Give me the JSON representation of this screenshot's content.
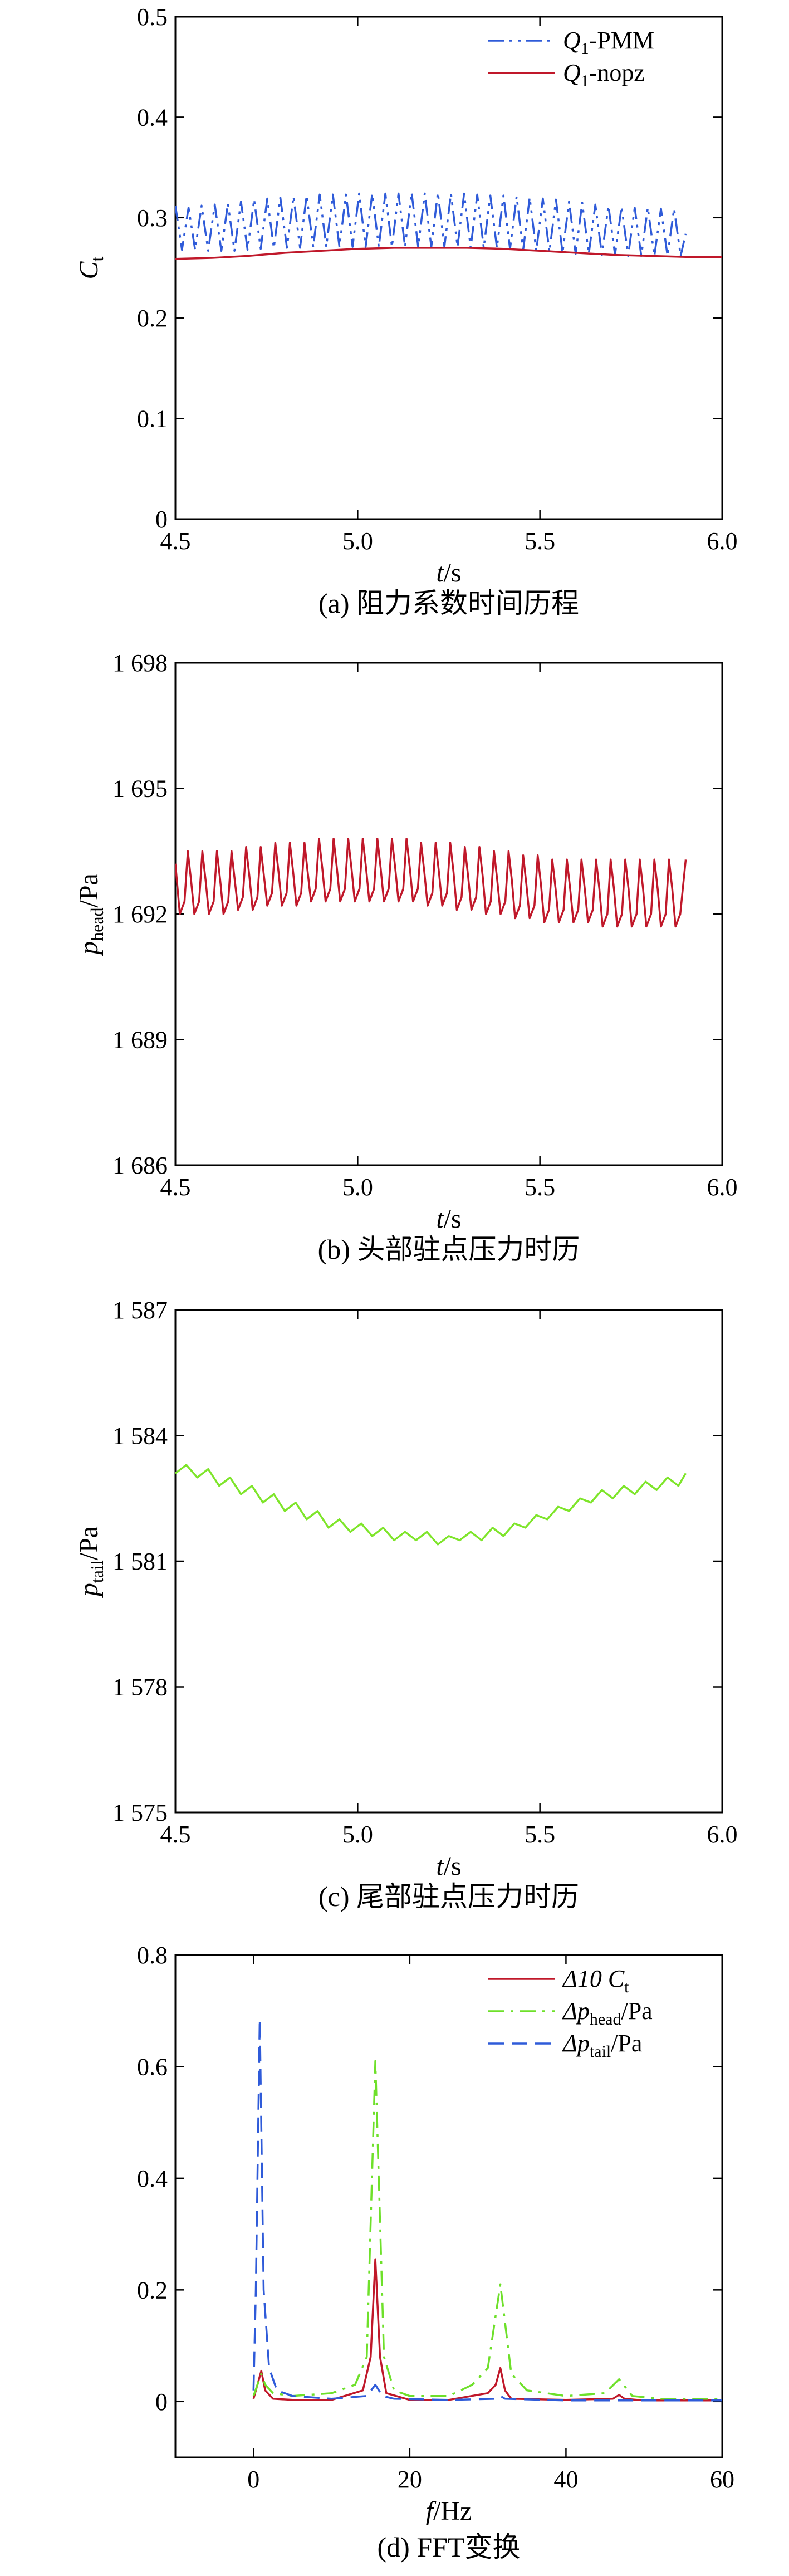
{
  "charts": [
    {
      "type": "line",
      "caption": "(a) 阻力系数时间历程",
      "xlabel": {
        "main": "t",
        "sub": "",
        "unit": "/s"
      },
      "ylabel": {
        "main": "C",
        "sub": "t",
        "unit": ""
      },
      "xlim": [
        4.5,
        6.0
      ],
      "ylim": [
        0,
        0.5
      ],
      "xticks": [
        4.5,
        5.0,
        5.5,
        6.0
      ],
      "xtick_labels": [
        "4.5",
        "5.0",
        "5.5",
        "6.0"
      ],
      "yticks": [
        0,
        0.1,
        0.2,
        0.3,
        0.4,
        0.5
      ],
      "ytick_labels": [
        "0",
        "0.1",
        "0.2",
        "0.3",
        "0.4",
        "0.5"
      ],
      "legend": {
        "position": "top-right"
      },
      "series": [
        {
          "name": "Q1-PMM",
          "label": {
            "main": "Q",
            "sub": "1",
            "rest": "-PMM"
          },
          "color": "#2f5bd9",
          "dash": "dashdotdot",
          "x": [
            4.5,
            4.518,
            4.536,
            4.554,
            4.572,
            4.59,
            4.608,
            4.626,
            4.644,
            4.662,
            4.68,
            4.698,
            4.716,
            4.734,
            4.752,
            4.77,
            4.788,
            4.806,
            4.824,
            4.842,
            4.86,
            4.878,
            4.896,
            4.914,
            4.932,
            4.95,
            4.968,
            4.986,
            5.004,
            5.022,
            5.04,
            5.058,
            5.076,
            5.094,
            5.112,
            5.13,
            5.148,
            5.166,
            5.184,
            5.202,
            5.22,
            5.238,
            5.256,
            5.274,
            5.292,
            5.31,
            5.328,
            5.346,
            5.364,
            5.382,
            5.4,
            5.418,
            5.436,
            5.454,
            5.472,
            5.49,
            5.508,
            5.526,
            5.544,
            5.562,
            5.58,
            5.598,
            5.616,
            5.634,
            5.652,
            5.67,
            5.688,
            5.706,
            5.724,
            5.742,
            5.76,
            5.778,
            5.796,
            5.814,
            5.832,
            5.85,
            5.868,
            5.886,
            5.9
          ],
          "y": [
            0.312,
            0.268,
            0.31,
            0.268,
            0.312,
            0.267,
            0.313,
            0.267,
            0.314,
            0.267,
            0.316,
            0.268,
            0.318,
            0.269,
            0.319,
            0.27,
            0.32,
            0.27,
            0.321,
            0.27,
            0.322,
            0.271,
            0.323,
            0.271,
            0.323,
            0.271,
            0.323,
            0.271,
            0.324,
            0.271,
            0.324,
            0.271,
            0.324,
            0.271,
            0.324,
            0.271,
            0.325,
            0.271,
            0.324,
            0.271,
            0.325,
            0.271,
            0.324,
            0.271,
            0.324,
            0.27,
            0.323,
            0.27,
            0.322,
            0.27,
            0.322,
            0.269,
            0.321,
            0.268,
            0.32,
            0.267,
            0.319,
            0.266,
            0.318,
            0.265,
            0.316,
            0.264,
            0.315,
            0.264,
            0.313,
            0.263,
            0.312,
            0.263,
            0.311,
            0.262,
            0.31,
            0.262,
            0.31,
            0.262,
            0.309,
            0.262,
            0.309,
            0.262,
            0.284
          ]
        },
        {
          "name": "Q1-nopz",
          "label": {
            "main": "Q",
            "sub": "1",
            "rest": "-nopz"
          },
          "color": "#c0182a",
          "dash": "solid",
          "x": [
            4.5,
            4.6,
            4.7,
            4.8,
            4.9,
            5.0,
            5.1,
            5.2,
            5.3,
            5.4,
            5.5,
            5.6,
            5.7,
            5.8,
            5.9,
            6.0
          ],
          "y": [
            0.259,
            0.26,
            0.262,
            0.265,
            0.267,
            0.269,
            0.27,
            0.27,
            0.27,
            0.269,
            0.267,
            0.265,
            0.263,
            0.262,
            0.261,
            0.261
          ]
        }
      ]
    },
    {
      "type": "line",
      "caption": "(b) 头部驻点压力时历",
      "xlabel": {
        "main": "t",
        "sub": "",
        "unit": "/s"
      },
      "ylabel": {
        "main": "p",
        "sub": "head",
        "unit": "/Pa"
      },
      "xlim": [
        4.5,
        6.0
      ],
      "ylim": [
        1686,
        1698
      ],
      "xticks": [
        4.5,
        5.0,
        5.5,
        6.0
      ],
      "xtick_labels": [
        "4.5",
        "5.0",
        "5.5",
        "6.0"
      ],
      "yticks": [
        1686,
        1689,
        1692,
        1695,
        1698
      ],
      "ytick_labels": [
        "1 686",
        "1 689",
        "1 692",
        "1 695",
        "1 698"
      ],
      "series": [
        {
          "name": "p_head",
          "color": "#c0182a",
          "dash": "solid",
          "x": [
            4.5,
            4.512,
            4.525,
            4.534,
            4.543,
            4.552,
            4.565,
            4.574,
            4.583,
            4.592,
            4.605,
            4.614,
            4.623,
            4.632,
            4.645,
            4.654,
            4.663,
            4.672,
            4.685,
            4.694,
            4.703,
            4.712,
            4.725,
            4.734,
            4.743,
            4.752,
            4.765,
            4.774,
            4.783,
            4.792,
            4.805,
            4.814,
            4.823,
            4.832,
            4.845,
            4.854,
            4.863,
            4.872,
            4.885,
            4.894,
            4.903,
            4.912,
            4.925,
            4.934,
            4.943,
            4.952,
            4.965,
            4.974,
            4.983,
            4.992,
            5.005,
            5.014,
            5.023,
            5.032,
            5.045,
            5.054,
            5.063,
            5.072,
            5.085,
            5.094,
            5.103,
            5.112,
            5.125,
            5.134,
            5.143,
            5.152,
            5.165,
            5.174,
            5.183,
            5.192,
            5.205,
            5.214,
            5.223,
            5.232,
            5.245,
            5.254,
            5.263,
            5.272,
            5.285,
            5.294,
            5.303,
            5.312,
            5.325,
            5.334,
            5.343,
            5.352,
            5.365,
            5.374,
            5.383,
            5.392,
            5.405,
            5.414,
            5.423,
            5.432,
            5.445,
            5.454,
            5.463,
            5.472,
            5.485,
            5.494,
            5.503,
            5.512,
            5.525,
            5.534,
            5.543,
            5.552,
            5.565,
            5.574,
            5.583,
            5.592,
            5.605,
            5.614,
            5.623,
            5.632,
            5.645,
            5.654,
            5.663,
            5.672,
            5.685,
            5.694,
            5.703,
            5.712,
            5.725,
            5.734,
            5.743,
            5.752,
            5.765,
            5.774,
            5.783,
            5.792,
            5.805,
            5.814,
            5.823,
            5.832,
            5.845,
            5.854,
            5.863,
            5.872,
            5.885,
            5.9
          ],
          "y": [
            1693.2,
            1692.0,
            1692.3,
            1693.5,
            1692.8,
            1692.0,
            1692.3,
            1693.5,
            1692.8,
            1692.0,
            1692.3,
            1693.5,
            1692.8,
            1692.0,
            1692.3,
            1693.5,
            1692.8,
            1692.1,
            1692.4,
            1693.6,
            1692.9,
            1692.1,
            1692.4,
            1693.6,
            1692.9,
            1692.2,
            1692.5,
            1693.7,
            1693.0,
            1692.2,
            1692.5,
            1693.7,
            1693.0,
            1692.2,
            1692.5,
            1693.7,
            1693.0,
            1692.3,
            1692.6,
            1693.8,
            1693.1,
            1692.3,
            1692.6,
            1693.8,
            1693.1,
            1692.3,
            1692.6,
            1693.8,
            1693.1,
            1692.3,
            1692.6,
            1693.8,
            1693.1,
            1692.3,
            1692.6,
            1693.8,
            1693.1,
            1692.3,
            1692.6,
            1693.8,
            1693.1,
            1692.3,
            1692.6,
            1693.8,
            1693.1,
            1692.3,
            1692.6,
            1693.7,
            1693.0,
            1692.2,
            1692.5,
            1693.7,
            1693.0,
            1692.2,
            1692.5,
            1693.7,
            1693.0,
            1692.1,
            1692.4,
            1693.6,
            1692.9,
            1692.1,
            1692.4,
            1693.6,
            1692.9,
            1692.0,
            1692.3,
            1693.5,
            1692.8,
            1692.0,
            1692.3,
            1693.5,
            1692.8,
            1691.9,
            1692.2,
            1693.4,
            1692.7,
            1691.9,
            1692.2,
            1693.4,
            1692.7,
            1691.8,
            1692.1,
            1693.3,
            1692.6,
            1691.8,
            1692.1,
            1693.3,
            1692.6,
            1691.8,
            1692.1,
            1693.3,
            1692.6,
            1691.8,
            1692.1,
            1693.3,
            1692.6,
            1691.7,
            1692.0,
            1693.3,
            1692.6,
            1691.7,
            1692.0,
            1693.3,
            1692.6,
            1691.7,
            1692.0,
            1693.3,
            1692.6,
            1691.7,
            1692.0,
            1693.3,
            1692.6,
            1691.7,
            1692.0,
            1693.3,
            1692.6,
            1691.7,
            1692.0,
            1693.3
          ]
        }
      ]
    },
    {
      "type": "line",
      "caption": "(c) 尾部驻点压力时历",
      "xlabel": {
        "main": "t",
        "sub": "",
        "unit": "/s"
      },
      "ylabel": {
        "main": "p",
        "sub": "tail",
        "unit": "/Pa"
      },
      "xlim": [
        4.5,
        6.0
      ],
      "ylim": [
        1575,
        1587
      ],
      "xticks": [
        4.5,
        5.0,
        5.5,
        6.0
      ],
      "xtick_labels": [
        "4.5",
        "5.0",
        "5.5",
        "6.0"
      ],
      "yticks": [
        1575,
        1578,
        1581,
        1584,
        1587
      ],
      "ytick_labels": [
        "1 575",
        "1 578",
        "1 581",
        "1 584",
        "1 587"
      ],
      "series": [
        {
          "name": "p_tail",
          "color": "#7ee52a",
          "dash": "solid",
          "x": [
            4.5,
            4.53,
            4.56,
            4.59,
            4.62,
            4.65,
            4.68,
            4.71,
            4.74,
            4.77,
            4.8,
            4.83,
            4.86,
            4.89,
            4.92,
            4.95,
            4.98,
            5.01,
            5.04,
            5.07,
            5.1,
            5.13,
            5.16,
            5.19,
            5.22,
            5.25,
            5.28,
            5.31,
            5.34,
            5.37,
            5.4,
            5.43,
            5.46,
            5.49,
            5.52,
            5.55,
            5.58,
            5.61,
            5.64,
            5.67,
            5.7,
            5.73,
            5.76,
            5.79,
            5.82,
            5.85,
            5.88,
            5.9
          ],
          "y": [
            1583.1,
            1583.3,
            1583.0,
            1583.2,
            1582.8,
            1583.0,
            1582.6,
            1582.8,
            1582.4,
            1582.6,
            1582.2,
            1582.4,
            1582.0,
            1582.2,
            1581.8,
            1582.0,
            1581.7,
            1581.9,
            1581.6,
            1581.8,
            1581.5,
            1581.7,
            1581.5,
            1581.7,
            1581.4,
            1581.6,
            1581.5,
            1581.7,
            1581.5,
            1581.8,
            1581.6,
            1581.9,
            1581.8,
            1582.1,
            1582.0,
            1582.3,
            1582.2,
            1582.5,
            1582.4,
            1582.7,
            1582.5,
            1582.8,
            1582.6,
            1582.9,
            1582.7,
            1583.0,
            1582.8,
            1583.1
          ]
        }
      ]
    },
    {
      "type": "line",
      "caption": "(d) FFT变换",
      "xlabel": {
        "main": "f",
        "sub": "",
        "unit": "/Hz"
      },
      "ylabel": {
        "main": "",
        "sub": "",
        "unit": ""
      },
      "xlim": [
        -10,
        60
      ],
      "ylim": [
        -0.1,
        0.8
      ],
      "xticks": [
        0,
        20,
        40,
        60
      ],
      "xtick_labels": [
        "0",
        "20",
        "40",
        "60"
      ],
      "yticks": [
        0,
        0.2,
        0.4,
        0.6,
        0.8
      ],
      "ytick_labels": [
        "0",
        "0.2",
        "0.4",
        "0.6",
        "0.8"
      ],
      "legend": {
        "position": "top-right"
      },
      "series": [
        {
          "name": "Δ10 Ct",
          "label": {
            "main": "Δ10 C",
            "sub": "t",
            "rest": ""
          },
          "color": "#c0182a",
          "dash": "solid",
          "x": [
            0,
            0.5,
            1.0,
            1.5,
            2.5,
            5,
            10,
            14,
            15,
            15.6,
            16.2,
            17,
            20,
            25,
            30,
            31,
            31.6,
            32.2,
            33,
            40,
            46,
            46.8,
            47.5,
            50,
            60
          ],
          "y": [
            0.005,
            0.03,
            0.055,
            0.02,
            0.005,
            0.003,
            0.003,
            0.02,
            0.08,
            0.255,
            0.08,
            0.015,
            0.003,
            0.003,
            0.015,
            0.03,
            0.06,
            0.02,
            0.005,
            0.003,
            0.005,
            0.012,
            0.005,
            0.002,
            0.002
          ]
        },
        {
          "name": "Δp_head/Pa",
          "label": {
            "main": "Δp",
            "sub": "head",
            "rest": "/Pa"
          },
          "color": "#6ee02a",
          "dash": "dashdot",
          "x": [
            0,
            0.5,
            1.0,
            1.5,
            2.5,
            5,
            10,
            13,
            14.5,
            15.6,
            16.7,
            18,
            20,
            25,
            28,
            30,
            31.6,
            33,
            35,
            40,
            45,
            46.8,
            48.5,
            52,
            60
          ],
          "y": [
            0.01,
            0.03,
            0.05,
            0.03,
            0.015,
            0.01,
            0.015,
            0.03,
            0.08,
            0.61,
            0.08,
            0.02,
            0.01,
            0.01,
            0.03,
            0.06,
            0.21,
            0.05,
            0.02,
            0.01,
            0.015,
            0.04,
            0.01,
            0.005,
            0.005
          ]
        },
        {
          "name": "Δp_tail/Pa",
          "label": {
            "main": "Δp",
            "sub": "tail",
            "rest": "/Pa"
          },
          "color": "#2f5bd9",
          "dash": "dashed",
          "x": [
            0,
            0.3,
            0.8,
            1.3,
            2.0,
            3.0,
            5,
            10,
            14.5,
            15.6,
            16.5,
            18,
            25,
            31,
            31.6,
            32.2,
            40,
            60
          ],
          "y": [
            0.02,
            0.2,
            0.685,
            0.2,
            0.06,
            0.02,
            0.01,
            0.005,
            0.01,
            0.03,
            0.01,
            0.005,
            0.003,
            0.005,
            0.01,
            0.005,
            0.002,
            0.002
          ]
        }
      ]
    }
  ]
}
